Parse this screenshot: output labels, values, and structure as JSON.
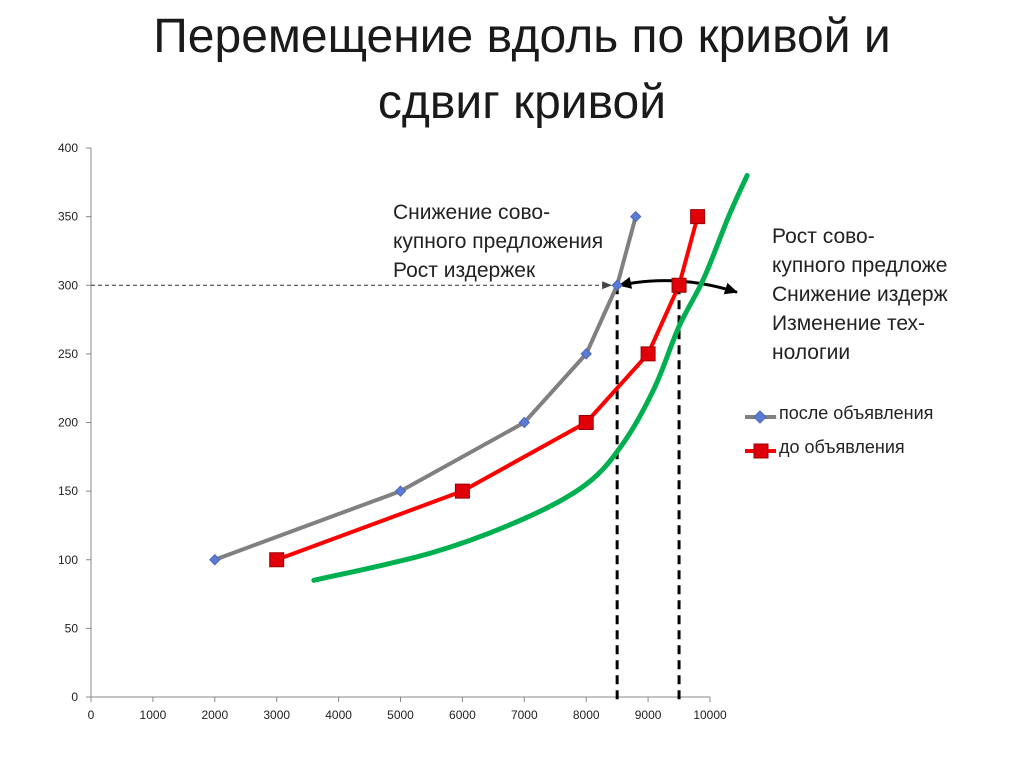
{
  "title": {
    "line1": "Перемещение вдоль по кривой и",
    "line2": "сдвиг кривой"
  },
  "annotations": {
    "left": [
      "Снижение сово-",
      "купного предложения",
      "Рост издержек"
    ],
    "right": [
      "Рост сово-",
      "купного предложе",
      "Снижение издерж",
      "Изменение тех-",
      "нологии"
    ]
  },
  "legend": {
    "after": "после объявления",
    "before": "до объявления"
  },
  "colors": {
    "after": "#808080",
    "after_marker": "#5b7bd5",
    "before": "#ff0000",
    "before_marker": "#e0000a",
    "shifted": "#00b050",
    "axis": "#888888"
  },
  "chart_data": {
    "type": "line",
    "x_ticks": [
      0,
      1000,
      2000,
      3000,
      4000,
      5000,
      6000,
      7000,
      8000,
      9000,
      10000
    ],
    "y_ticks": [
      0,
      50,
      100,
      150,
      200,
      250,
      300,
      350,
      400
    ],
    "xlim": [
      0,
      10000
    ],
    "ylim": [
      0,
      400
    ],
    "grid": false,
    "legend_position": "right",
    "series": [
      {
        "name": "после объявления",
        "marker": "diamond",
        "x": [
          2000,
          5000,
          7000,
          8000,
          8500,
          8800
        ],
        "y": [
          100,
          150,
          200,
          250,
          300,
          350
        ]
      },
      {
        "name": "до объявления",
        "marker": "square",
        "x": [
          3000,
          6000,
          8000,
          9000,
          9500,
          9800
        ],
        "y": [
          100,
          150,
          200,
          250,
          300,
          350
        ]
      },
      {
        "marker": "none",
        "x": [
          3600,
          5500,
          7000,
          8000,
          8600,
          9100,
          9500,
          9900,
          10300,
          10600
        ],
        "y": [
          85,
          105,
          130,
          155,
          185,
          225,
          270,
          305,
          350,
          380
        ]
      }
    ],
    "reference_lines": {
      "horizontal_y": 300,
      "vertical_x": [
        8500,
        9500
      ],
      "shift_arrow": {
        "from_x": 8500,
        "to_x": 10500,
        "y": 300
      }
    }
  }
}
